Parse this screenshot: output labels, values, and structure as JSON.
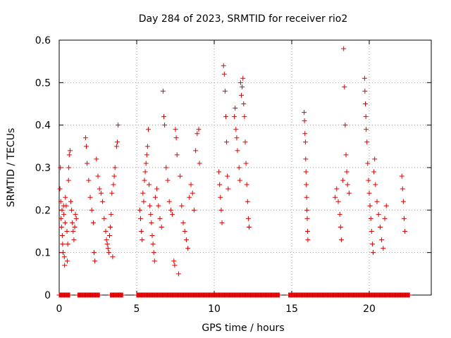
{
  "chart_data": {
    "type": "scatter",
    "title": "Day 284 of 2023, SRMTID for receiver rio2",
    "xlabel": "GPS time / hours",
    "ylabel": "SRMTID / TECUs",
    "xlim": [
      0,
      24
    ],
    "ylim": [
      0,
      0.6
    ],
    "x_ticks": [
      0,
      5,
      10,
      15,
      20
    ],
    "x_tick_labels": [
      "0",
      "5",
      "10",
      "15",
      "20"
    ],
    "y_ticks": [
      0,
      0.1,
      0.2,
      0.3,
      0.4,
      0.5,
      0.6
    ],
    "y_tick_labels": [
      "0",
      "0.1",
      "0.2",
      "0.3",
      "0.4",
      "0.5",
      "0.6"
    ],
    "grid": true,
    "marker": "+",
    "marker_color": "#e00000",
    "series": [
      {
        "name": "SRMTID",
        "points": [
          [
            0.05,
            0.25
          ],
          [
            0.08,
            0.3
          ],
          [
            0.1,
            0.22
          ],
          [
            0.12,
            0.18
          ],
          [
            0.15,
            0.16
          ],
          [
            0.18,
            0.2
          ],
          [
            0.2,
            0.14
          ],
          [
            0.22,
            0.12
          ],
          [
            0.25,
            0.1
          ],
          [
            0.28,
            0.21
          ],
          [
            0.3,
            0.19
          ],
          [
            0.33,
            0.09
          ],
          [
            0.35,
            0.07
          ],
          [
            0.38,
            0.17
          ],
          [
            0.4,
            0.23
          ],
          [
            0.45,
            0.21
          ],
          [
            0.5,
            0.15
          ],
          [
            0.52,
            0.08
          ],
          [
            0.55,
            0.12
          ],
          [
            0.6,
            0.27
          ],
          [
            0.62,
            0.3
          ],
          [
            0.65,
            0.33
          ],
          [
            0.7,
            0.34
          ],
          [
            0.75,
            0.22
          ],
          [
            0.8,
            0.2
          ],
          [
            0.85,
            0.17
          ],
          [
            0.9,
            0.15
          ],
          [
            0.95,
            0.13
          ],
          [
            1.0,
            0.16
          ],
          [
            1.05,
            0.19
          ],
          [
            1.1,
            0.18
          ],
          [
            1.7,
            0.37
          ],
          [
            1.75,
            0.35
          ],
          [
            1.8,
            0.31
          ],
          [
            1.9,
            0.27
          ],
          [
            2.0,
            0.23
          ],
          [
            2.1,
            0.2
          ],
          [
            2.2,
            0.17
          ],
          [
            2.25,
            0.1
          ],
          [
            2.3,
            0.08
          ],
          [
            2.4,
            0.32
          ],
          [
            2.5,
            0.28
          ],
          [
            2.6,
            0.25
          ],
          [
            2.7,
            0.24
          ],
          [
            2.8,
            0.22
          ],
          [
            2.9,
            0.18
          ],
          [
            3.0,
            0.15
          ],
          [
            3.05,
            0.13
          ],
          [
            3.1,
            0.12
          ],
          [
            3.15,
            0.11
          ],
          [
            3.2,
            0.1
          ],
          [
            3.25,
            0.14
          ],
          [
            3.3,
            0.16
          ],
          [
            3.35,
            0.19
          ],
          [
            3.4,
            0.24
          ],
          [
            3.45,
            0.09
          ],
          [
            3.5,
            0.26
          ],
          [
            3.55,
            0.28
          ],
          [
            3.6,
            0.3
          ],
          [
            3.7,
            0.35
          ],
          [
            3.75,
            0.36
          ],
          [
            3.8,
            0.4
          ],
          [
            5.2,
            0.2
          ],
          [
            5.25,
            0.18
          ],
          [
            5.3,
            0.15
          ],
          [
            5.35,
            0.13
          ],
          [
            5.4,
            0.24
          ],
          [
            5.45,
            0.22
          ],
          [
            5.5,
            0.27
          ],
          [
            5.55,
            0.29
          ],
          [
            5.6,
            0.31
          ],
          [
            5.65,
            0.33
          ],
          [
            5.7,
            0.35
          ],
          [
            5.75,
            0.39
          ],
          [
            5.8,
            0.26
          ],
          [
            5.85,
            0.21
          ],
          [
            5.9,
            0.19
          ],
          [
            5.95,
            0.17
          ],
          [
            6.0,
            0.14
          ],
          [
            6.05,
            0.12
          ],
          [
            6.1,
            0.1
          ],
          [
            6.15,
            0.08
          ],
          [
            6.2,
            0.23
          ],
          [
            6.3,
            0.25
          ],
          [
            6.4,
            0.21
          ],
          [
            6.5,
            0.18
          ],
          [
            6.6,
            0.16
          ],
          [
            6.7,
            0.48
          ],
          [
            6.75,
            0.42
          ],
          [
            6.8,
            0.4
          ],
          [
            6.9,
            0.3
          ],
          [
            7.0,
            0.27
          ],
          [
            7.1,
            0.22
          ],
          [
            7.2,
            0.2
          ],
          [
            7.3,
            0.19
          ],
          [
            7.4,
            0.08
          ],
          [
            7.45,
            0.07
          ],
          [
            7.5,
            0.39
          ],
          [
            7.55,
            0.37
          ],
          [
            7.6,
            0.33
          ],
          [
            7.7,
            0.05
          ],
          [
            7.8,
            0.28
          ],
          [
            7.9,
            0.21
          ],
          [
            8.0,
            0.17
          ],
          [
            8.1,
            0.15
          ],
          [
            8.2,
            0.13
          ],
          [
            8.3,
            0.11
          ],
          [
            8.4,
            0.23
          ],
          [
            8.5,
            0.26
          ],
          [
            8.6,
            0.24
          ],
          [
            8.7,
            0.2
          ],
          [
            8.8,
            0.34
          ],
          [
            8.9,
            0.38
          ],
          [
            9.0,
            0.39
          ],
          [
            9.05,
            0.31
          ],
          [
            10.3,
            0.29
          ],
          [
            10.35,
            0.26
          ],
          [
            10.4,
            0.23
          ],
          [
            10.45,
            0.2
          ],
          [
            10.5,
            0.17
          ],
          [
            10.6,
            0.54
          ],
          [
            10.65,
            0.52
          ],
          [
            10.7,
            0.48
          ],
          [
            10.75,
            0.42
          ],
          [
            10.8,
            0.36
          ],
          [
            10.85,
            0.28
          ],
          [
            10.9,
            0.25
          ],
          [
            11.3,
            0.42
          ],
          [
            11.35,
            0.44
          ],
          [
            11.4,
            0.39
          ],
          [
            11.45,
            0.37
          ],
          [
            11.5,
            0.34
          ],
          [
            11.6,
            0.3
          ],
          [
            11.65,
            0.27
          ],
          [
            11.7,
            0.5
          ],
          [
            11.75,
            0.47
          ],
          [
            11.8,
            0.49
          ],
          [
            11.85,
            0.51
          ],
          [
            11.9,
            0.45
          ],
          [
            11.95,
            0.42
          ],
          [
            12.0,
            0.36
          ],
          [
            12.05,
            0.31
          ],
          [
            12.1,
            0.26
          ],
          [
            12.15,
            0.22
          ],
          [
            12.2,
            0.18
          ],
          [
            12.25,
            0.16
          ],
          [
            15.8,
            0.43
          ],
          [
            15.82,
            0.41
          ],
          [
            15.85,
            0.38
          ],
          [
            15.88,
            0.36
          ],
          [
            15.9,
            0.32
          ],
          [
            15.92,
            0.29
          ],
          [
            15.94,
            0.26
          ],
          [
            15.96,
            0.23
          ],
          [
            15.98,
            0.2
          ],
          [
            16.0,
            0.18
          ],
          [
            16.02,
            0.15
          ],
          [
            16.04,
            0.13
          ],
          [
            17.8,
            0.23
          ],
          [
            17.9,
            0.25
          ],
          [
            18.0,
            0.22
          ],
          [
            18.1,
            0.19
          ],
          [
            18.15,
            0.16
          ],
          [
            18.2,
            0.13
          ],
          [
            18.3,
            0.27
          ],
          [
            18.35,
            0.58
          ],
          [
            18.4,
            0.49
          ],
          [
            18.45,
            0.4
          ],
          [
            18.5,
            0.33
          ],
          [
            18.55,
            0.29
          ],
          [
            18.6,
            0.26
          ],
          [
            18.7,
            0.24
          ],
          [
            19.7,
            0.51
          ],
          [
            19.72,
            0.48
          ],
          [
            19.75,
            0.45
          ],
          [
            19.78,
            0.42
          ],
          [
            19.8,
            0.39
          ],
          [
            19.85,
            0.36
          ],
          [
            19.9,
            0.31
          ],
          [
            19.95,
            0.27
          ],
          [
            20.0,
            0.24
          ],
          [
            20.05,
            0.21
          ],
          [
            20.1,
            0.18
          ],
          [
            20.15,
            0.15
          ],
          [
            20.2,
            0.12
          ],
          [
            20.25,
            0.1
          ],
          [
            20.3,
            0.29
          ],
          [
            20.35,
            0.32
          ],
          [
            20.4,
            0.26
          ],
          [
            20.5,
            0.22
          ],
          [
            20.6,
            0.19
          ],
          [
            20.7,
            0.16
          ],
          [
            20.8,
            0.13
          ],
          [
            20.9,
            0.11
          ],
          [
            21.0,
            0.18
          ],
          [
            21.1,
            0.21
          ],
          [
            22.1,
            0.28
          ],
          [
            22.15,
            0.25
          ],
          [
            22.2,
            0.22
          ],
          [
            22.25,
            0.18
          ],
          [
            22.3,
            0.15
          ]
        ]
      }
    ],
    "zero_band_intervals": [
      [
        0,
        0.7
      ],
      [
        1.2,
        2.6
      ],
      [
        3.3,
        4.1
      ],
      [
        5.0,
        14.2
      ],
      [
        14.8,
        22.6
      ]
    ]
  }
}
